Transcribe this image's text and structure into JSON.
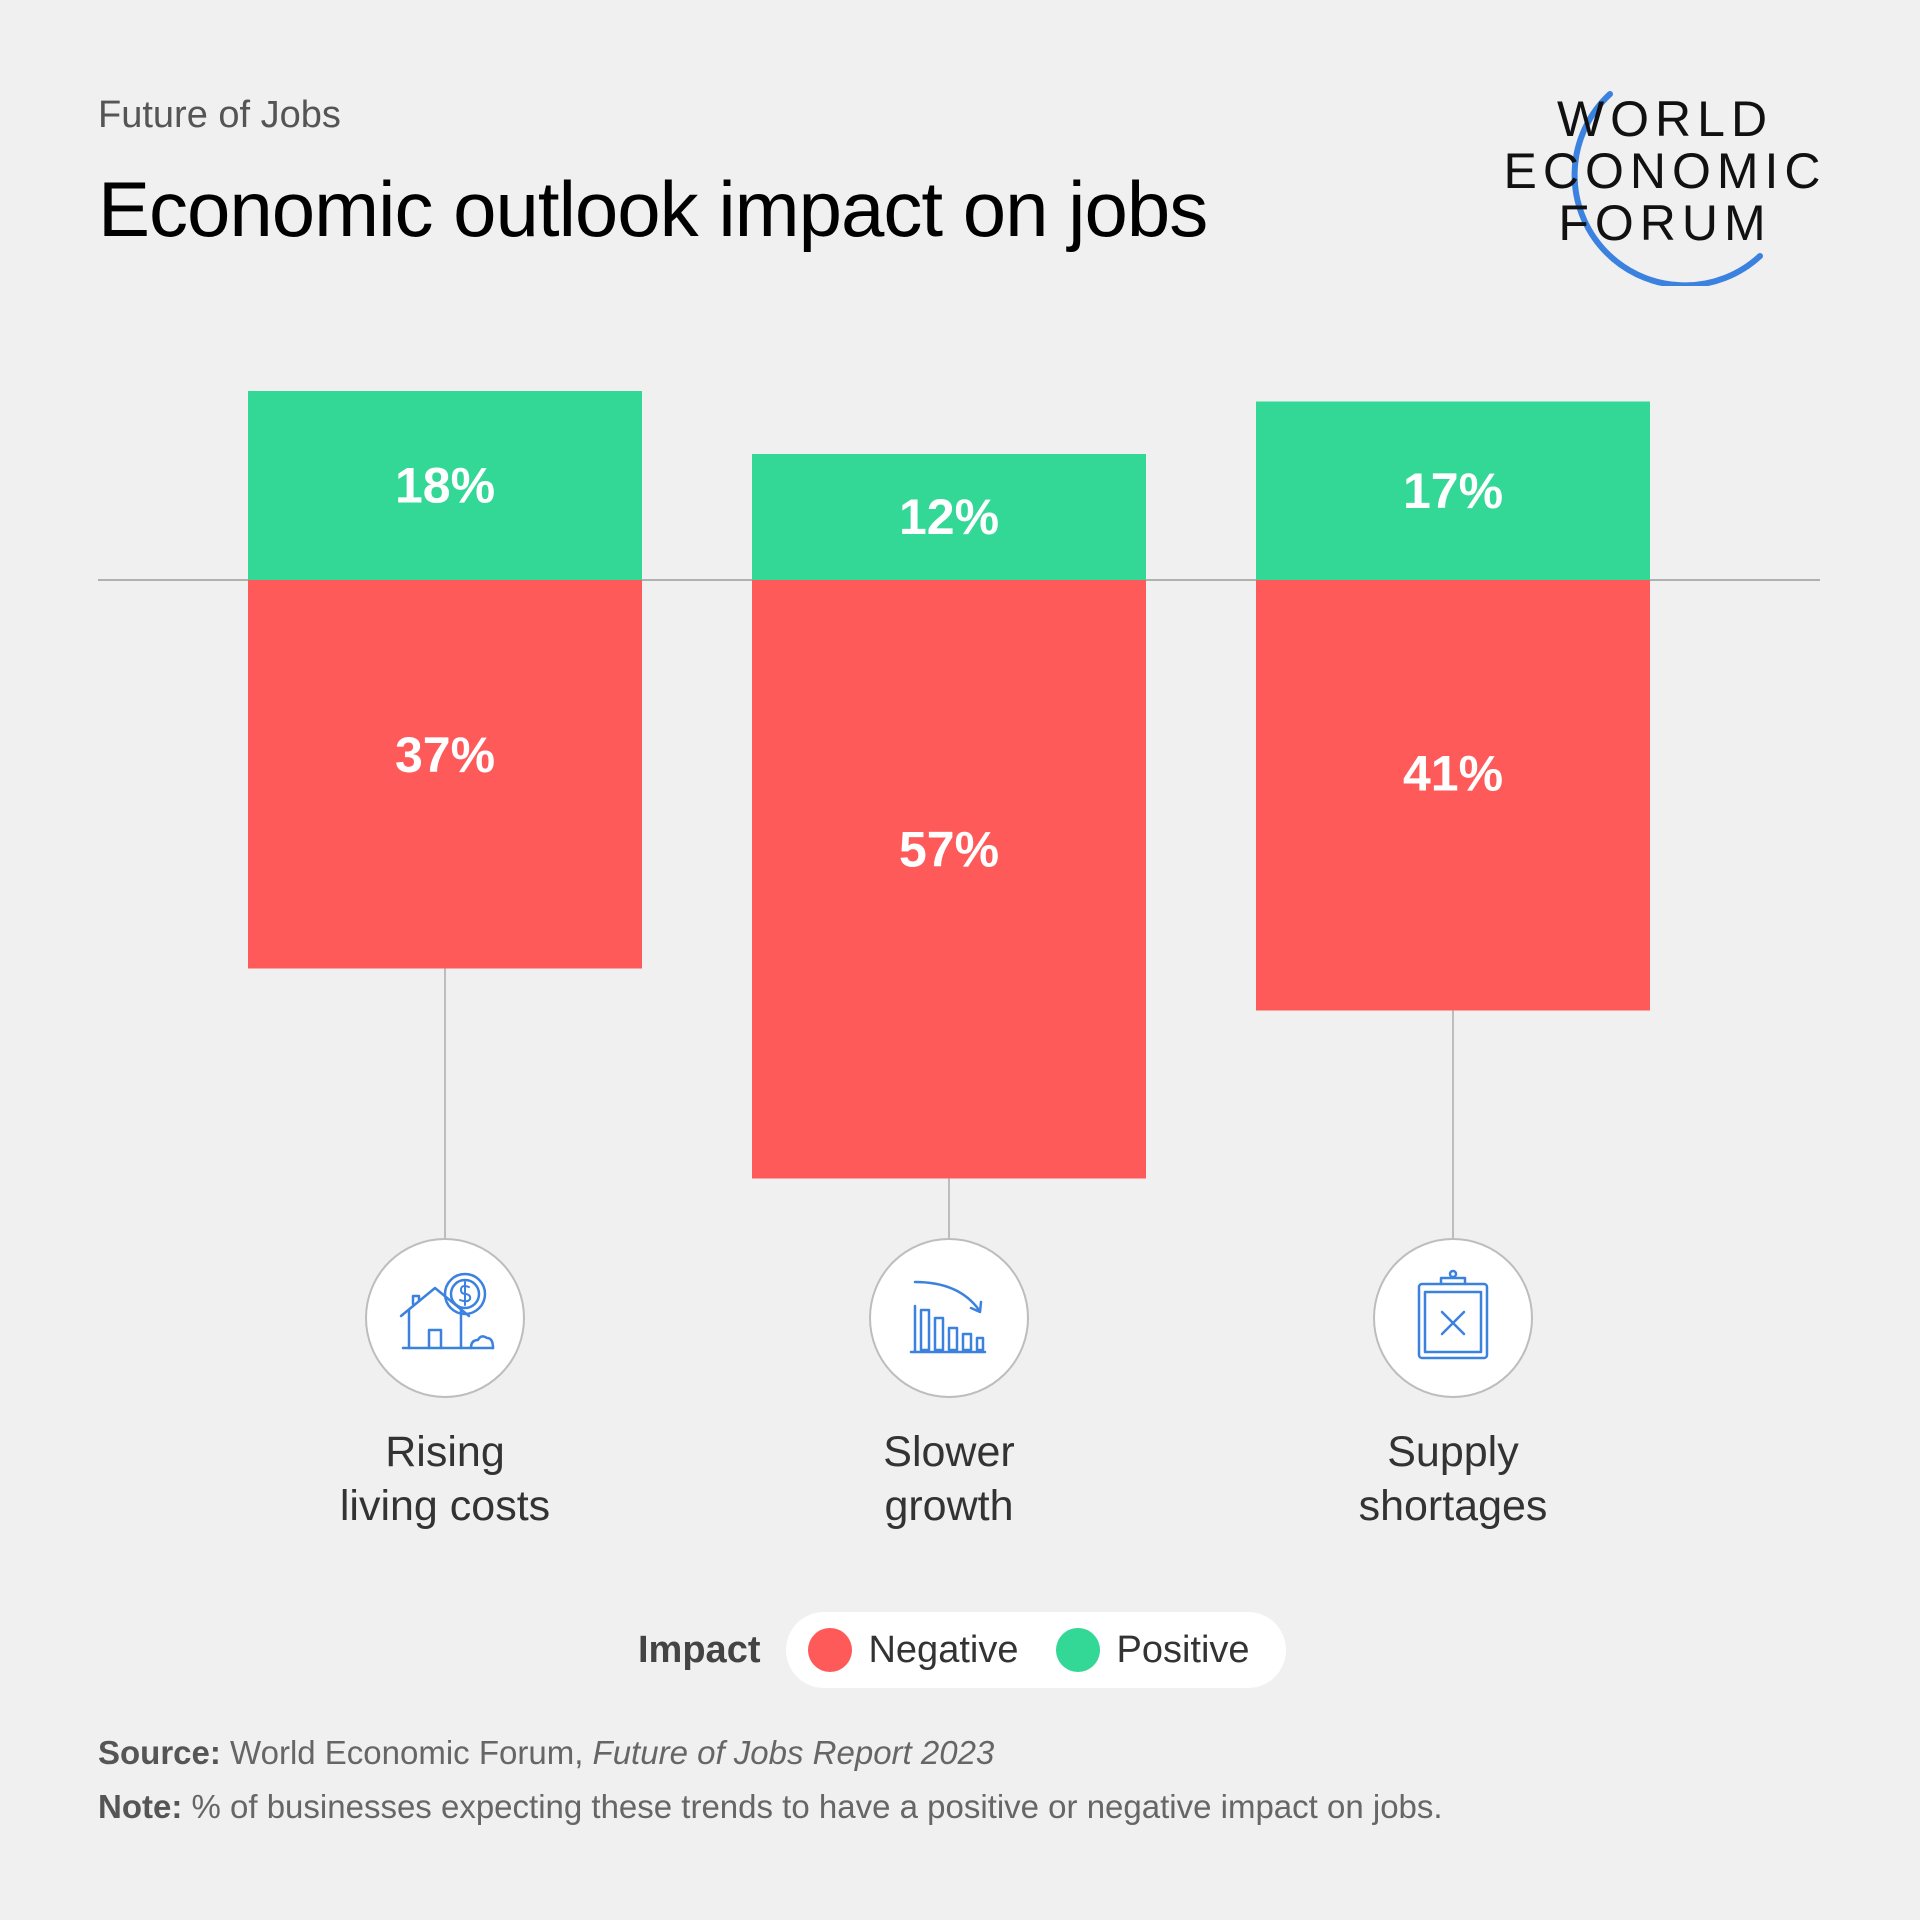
{
  "header": {
    "kicker": "Future of Jobs",
    "title": "Economic outlook impact on jobs"
  },
  "logo": {
    "line1": "WORLD",
    "line2": "ECONOMIC",
    "line3": "FORUM"
  },
  "colors": {
    "positive": "#33d896",
    "negative": "#ff5a5a",
    "icon": "#3b82e0",
    "background": "#f0f0f0"
  },
  "chart_data": {
    "type": "bar",
    "categories": [
      "Rising\nliving costs",
      "Slower\ngrowth",
      "Supply\nshortages"
    ],
    "category_icons": [
      "house-cost-icon",
      "declining-bar-chart-icon",
      "clipboard-x-icon"
    ],
    "series": [
      {
        "name": "Positive",
        "values": [
          18,
          12,
          17
        ],
        "labels": [
          "18%",
          "12%",
          "17%"
        ]
      },
      {
        "name": "Negative",
        "values": [
          37,
          57,
          41
        ],
        "labels": [
          "37%",
          "57%",
          "41%"
        ]
      }
    ],
    "layout": "diverging",
    "legend_title": "Impact",
    "legend_position": "bottom-center",
    "grid": false
  },
  "legend": {
    "title": "Impact",
    "negative": "Negative",
    "positive": "Positive"
  },
  "footer": {
    "source_label": "Source:",
    "source_text": "World Economic Forum,",
    "source_report": "Future of Jobs Report 2023",
    "note_label": "Note:",
    "note_text": "% of businesses expecting these trends to have a positive or negative impact on jobs."
  }
}
